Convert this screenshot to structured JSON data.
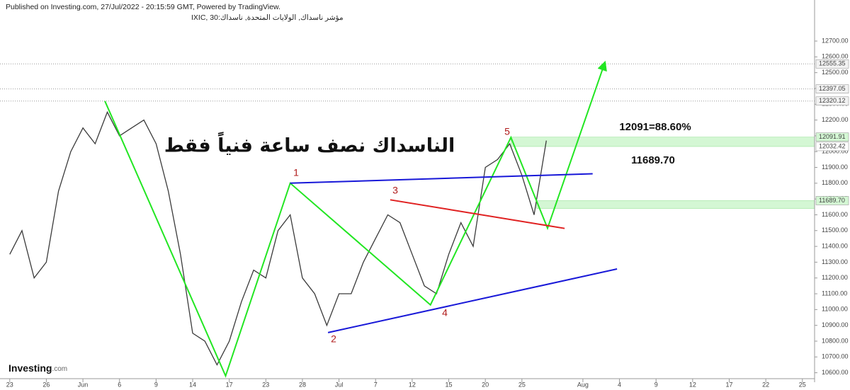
{
  "header": {
    "published": "Published on Investing.com, 27/Jul/2022 - 20:15:59 GMT, Powered by TradingView.",
    "symbol": "مؤشر ناسداك, الولايات المتحدة, ناسداك:IXIC, 30"
  },
  "brand": {
    "name": "Investing",
    "suffix": ".com"
  },
  "chart_data": {
    "type": "line",
    "title": "الناسداك نصف ساعة فنياً فقط",
    "x": [
      0,
      1,
      2,
      3,
      4,
      5,
      6,
      7,
      8,
      9,
      10,
      11,
      12,
      13,
      14,
      15,
      16,
      17,
      18,
      19,
      20,
      21,
      22,
      23,
      24,
      25,
      26,
      27,
      28,
      29,
      30,
      31,
      32,
      33,
      34,
      35,
      36,
      37,
      38,
      39,
      40,
      41,
      42,
      43,
      44
    ],
    "series": [
      {
        "color": "#3a3a3a",
        "values": [
          11350,
          11500,
          11200,
          11300,
          11750,
          12000,
          12150,
          12050,
          12250,
          12100,
          12150,
          12200,
          12050,
          11750,
          11350,
          10850,
          10800,
          10650,
          10800,
          11050,
          11250,
          11200,
          11500,
          11600,
          11200,
          11100,
          10900,
          11100,
          11100,
          11300,
          11450,
          11600,
          11550,
          11350,
          11150,
          11100,
          11350,
          11550,
          11400,
          11900,
          11950,
          12050,
          11850,
          11600,
          12070
        ]
      }
    ],
    "xlim": [
      -0.8,
      66
    ],
    "xticks": [
      {
        "value": 0,
        "label": "23"
      },
      {
        "value": 3,
        "label": "26"
      },
      {
        "value": 6,
        "label": "Jun"
      },
      {
        "value": 9,
        "label": "6"
      },
      {
        "value": 12,
        "label": "9"
      },
      {
        "value": 15,
        "label": "14"
      },
      {
        "value": 18,
        "label": "17"
      },
      {
        "value": 21,
        "label": "23"
      },
      {
        "value": 24,
        "label": "28"
      },
      {
        "value": 27,
        "label": "Jul"
      },
      {
        "value": 30,
        "label": "7"
      },
      {
        "value": 33,
        "label": "12"
      },
      {
        "value": 36,
        "label": "15"
      },
      {
        "value": 39,
        "label": "20"
      },
      {
        "value": 42,
        "label": "25"
      },
      {
        "value": 47,
        "label": "Aug"
      },
      {
        "value": 50,
        "label": "4"
      },
      {
        "value": 53,
        "label": "9"
      },
      {
        "value": 56,
        "label": "12"
      },
      {
        "value": 59,
        "label": "17"
      },
      {
        "value": 62,
        "label": "22"
      },
      {
        "value": 65,
        "label": "25"
      }
    ],
    "ylim": [
      10540,
      12960
    ],
    "yticks": [
      {
        "value": 10600,
        "label": "10600.00"
      },
      {
        "value": 10700,
        "label": "10700.00"
      },
      {
        "value": 10800,
        "label": "10800.00"
      },
      {
        "value": 10900,
        "label": "10900.00"
      },
      {
        "value": 11000,
        "label": "11000.00"
      },
      {
        "value": 11100,
        "label": "11100.00"
      },
      {
        "value": 11200,
        "label": "11200.00"
      },
      {
        "value": 11300,
        "label": "11300.00"
      },
      {
        "value": 11400,
        "label": "11400.00"
      },
      {
        "value": 11500,
        "label": "11500.00"
      },
      {
        "value": 11600,
        "label": "11600.00"
      },
      {
        "value": 11700,
        "label": "11700.00"
      },
      {
        "value": 11800,
        "label": "11800.00"
      },
      {
        "value": 11900,
        "label": "11900.00"
      },
      {
        "value": 12000,
        "label": "12000.00"
      },
      {
        "value": 12100,
        "label": "12100.00"
      },
      {
        "value": 12200,
        "label": "12200.00"
      },
      {
        "value": 12300,
        "label": "12300.00"
      },
      {
        "value": 12400,
        "label": "12400.00"
      },
      {
        "value": 12500,
        "label": "12500.00"
      },
      {
        "value": 12600,
        "label": "12600.00"
      },
      {
        "value": 12700,
        "label": "12700.00"
      }
    ],
    "reference_lines": [
      12555.35,
      12397.05,
      12320.12
    ],
    "zones": [
      {
        "start": 41.1,
        "low": 12032.42,
        "high": 12091.91,
        "color": "#d4f7d4"
      },
      {
        "start": 43.2,
        "low": 11640,
        "high": {
          "value": 11689.7,
          "label": "11689.70"
        },
        "color": "#d4f7d4"
      }
    ],
    "lines": [
      {
        "color": "#22e622",
        "arrow": true,
        "points": [
          [
            7.8,
            12320
          ],
          [
            17.7,
            10580
          ],
          [
            23,
            11800
          ],
          [
            34.5,
            11030
          ],
          [
            41.1,
            12090
          ],
          [
            44.1,
            11515
          ],
          [
            48.8,
            12564
          ]
        ]
      },
      {
        "color": "#1818d8",
        "points": [
          [
            23,
            11800
          ],
          [
            47.8,
            11860
          ]
        ]
      },
      {
        "color": "#1818d8",
        "points": [
          [
            26.1,
            10854
          ],
          [
            49.8,
            11257
          ]
        ]
      },
      {
        "color": "#e02020",
        "points": [
          [
            31.2,
            11695
          ],
          [
            45.5,
            11514
          ]
        ]
      }
    ],
    "wave_labels": [
      "1",
      "2",
      "3",
      "4",
      "5"
    ],
    "annotations": [
      "12091=88.60%",
      "11689.70"
    ]
  }
}
